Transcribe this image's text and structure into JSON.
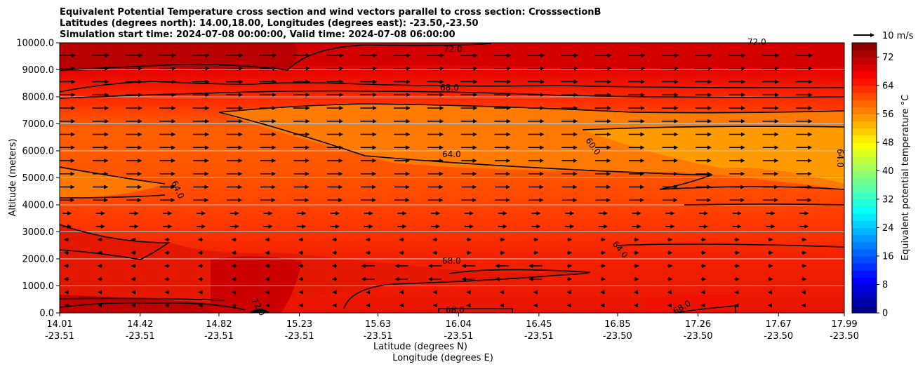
{
  "chart_data": {
    "type": "contour",
    "title_lines": [
      "Equivalent Potential Temperature cross section and wind vectors parallel to cross section: CrosssectionB",
      "Latitudes (degrees north): 14.00,18.00, Longitudes (degrees east): -23.50,-23.50",
      "Simulation start time: 2024-07-08 00:00:00, Valid time: 2024-07-08 06:00:00"
    ],
    "ylabel": "Altitude (meters)",
    "xlabel_lines": [
      "Latitude (degrees N)",
      "Longitude (degrees E)"
    ],
    "ylim": [
      0,
      10000
    ],
    "y_ticks": [
      "0.0",
      "1000.0",
      "2000.0",
      "3000.0",
      "4000.0",
      "5000.0",
      "6000.0",
      "7000.0",
      "8000.0",
      "9000.0",
      "10000.0"
    ],
    "x_ticks": [
      {
        "lat": "14.01",
        "lon": "-23.51"
      },
      {
        "lat": "14.42",
        "lon": "-23.51"
      },
      {
        "lat": "14.82",
        "lon": "-23.51"
      },
      {
        "lat": "15.23",
        "lon": "-23.51"
      },
      {
        "lat": "15.63",
        "lon": "-23.51"
      },
      {
        "lat": "16.04",
        "lon": "-23.51"
      },
      {
        "lat": "16.45",
        "lon": "-23.51"
      },
      {
        "lat": "16.85",
        "lon": "-23.50"
      },
      {
        "lat": "17.26",
        "lon": "-23.50"
      },
      {
        "lat": "17.67",
        "lon": "-23.50"
      },
      {
        "lat": "17.99",
        "lon": "-23.50"
      }
    ],
    "colorbar": {
      "label": "Equivalent potential temperature $^\\circ$C",
      "label_text": "Equivalent potential temperature °C",
      "range": [
        0,
        76
      ],
      "ticks": [
        "0",
        "8",
        "16",
        "24",
        "32",
        "40",
        "48",
        "56",
        "64",
        "72"
      ],
      "colormap": "jet"
    },
    "quiver_key": "10 m/s",
    "contour_labels": [
      "72.0",
      "72.0",
      "68.0",
      "64.0",
      "60.0",
      "64.0",
      "64.0",
      "64.0",
      "68.0",
      "68.0",
      "68.0",
      "72.0"
    ],
    "grid": true
  }
}
